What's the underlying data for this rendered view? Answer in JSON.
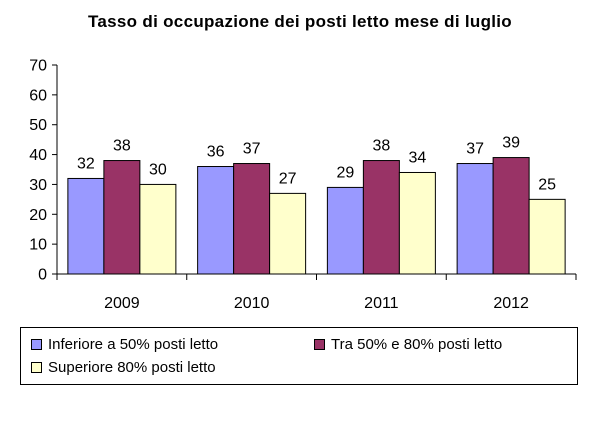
{
  "chart_data": {
    "type": "bar",
    "title": "Tasso di occupazione dei posti letto mese di luglio",
    "categories": [
      "2009",
      "2010",
      "2011",
      "2012"
    ],
    "series": [
      {
        "name": "Inferiore a 50% posti letto",
        "values": [
          32,
          36,
          29,
          37
        ],
        "color": "#9999ff"
      },
      {
        "name": "Tra 50% e 80% posti letto",
        "values": [
          38,
          37,
          38,
          39
        ],
        "color": "#993366"
      },
      {
        "name": "Superiore 80% posti letto",
        "values": [
          30,
          27,
          34,
          25
        ],
        "color": "#ffffcc"
      }
    ],
    "ylim": [
      0,
      70
    ],
    "yticks": [
      0,
      10,
      20,
      30,
      40,
      50,
      60,
      70
    ],
    "grid": false,
    "legend_position": "bottom"
  }
}
